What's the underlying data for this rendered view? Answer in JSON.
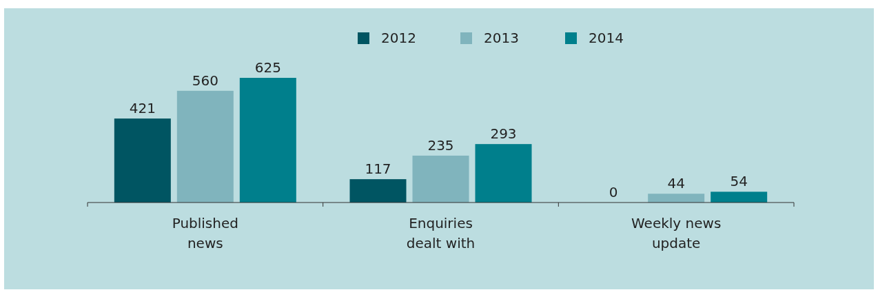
{
  "chart_data": {
    "type": "bar",
    "categories": [
      "Published news",
      "Enquiries dealt with",
      "Weekly news update"
    ],
    "series": [
      {
        "name": "2012",
        "color": "#005562",
        "values": [
          421,
          117,
          0
        ]
      },
      {
        "name": "2013",
        "color": "#80b4bd",
        "values": [
          560,
          235,
          44
        ]
      },
      {
        "name": "2014",
        "color": "#007f8c",
        "values": [
          625,
          293,
          54
        ]
      }
    ],
    "data_labels": true,
    "legend": "top"
  }
}
